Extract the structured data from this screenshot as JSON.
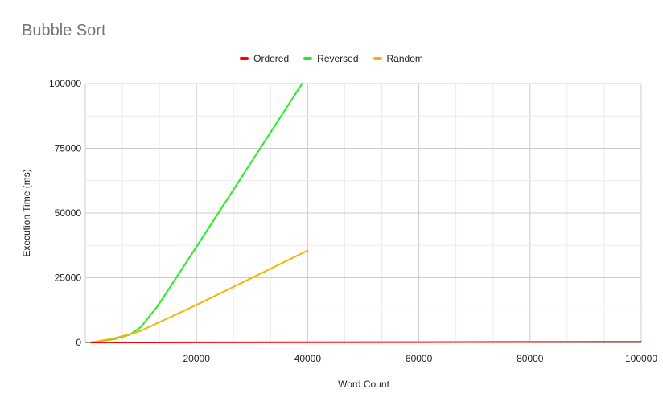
{
  "chart_data": {
    "type": "line",
    "title": "Bubble Sort",
    "xlabel": "Word Count",
    "ylabel": "Execution Time (ms)",
    "xlim": [
      0,
      100000
    ],
    "ylim": [
      0,
      100000
    ],
    "xticks": [
      20000,
      40000,
      60000,
      80000,
      100000
    ],
    "yticks": [
      0,
      25000,
      50000,
      75000,
      100000
    ],
    "grid": true,
    "legend_position": "top",
    "series": [
      {
        "name": "Ordered",
        "color": "#ff0000",
        "points": [
          [
            1000,
            0
          ],
          [
            10000,
            10
          ],
          [
            20000,
            30
          ],
          [
            40000,
            70
          ],
          [
            60000,
            130
          ],
          [
            80000,
            190
          ],
          [
            100000,
            250
          ]
        ]
      },
      {
        "name": "Reversed",
        "color": "#22ee22",
        "points": [
          [
            1000,
            0
          ],
          [
            5000,
            1200
          ],
          [
            8000,
            3000
          ],
          [
            10000,
            6000
          ],
          [
            13000,
            14000
          ],
          [
            20000,
            37000
          ],
          [
            39000,
            100000
          ]
        ]
      },
      {
        "name": "Random",
        "color": "#f4b400",
        "points": [
          [
            1000,
            0
          ],
          [
            5000,
            1500
          ],
          [
            8000,
            3200
          ],
          [
            10000,
            4500
          ],
          [
            20000,
            14500
          ],
          [
            40000,
            35500
          ]
        ]
      }
    ]
  }
}
